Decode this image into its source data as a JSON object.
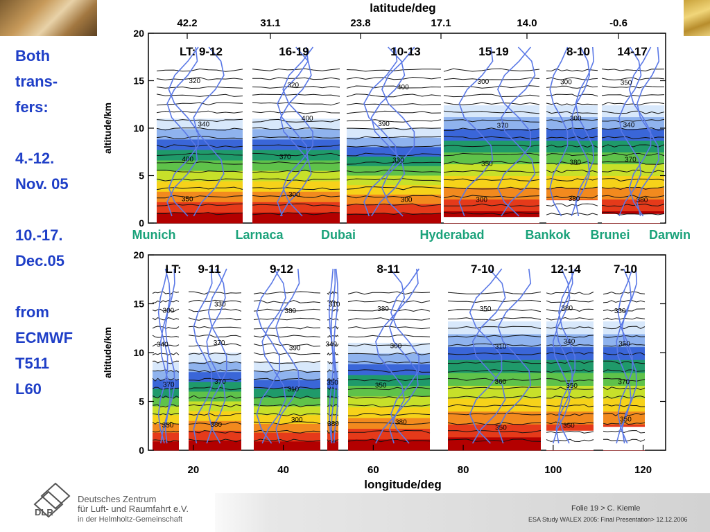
{
  "slide": {
    "left_notes": [
      "Both",
      "trans-",
      "fers:",
      "",
      "4.-12.",
      "Nov. 05",
      "",
      "10.-17.",
      "Dec.05",
      "",
      "from",
      "ECMWF",
      "T511",
      "L60"
    ],
    "colors": {
      "note_blue": "#1f3fc7",
      "city_green": "#1aa27a",
      "contour_blue": "#5a78e6"
    }
  },
  "chart_data": [
    {
      "type": "heatmap",
      "panel": "top",
      "xlabel_top": "latitude/deg",
      "x_top_ticks": [
        "42.2",
        "31.1",
        "23.8",
        "17.1",
        "14.0",
        "-0.6"
      ],
      "ylabel": "altitude/km",
      "y_ticks": [
        "0",
        "5",
        "10",
        "15",
        "20"
      ],
      "ylim": [
        0,
        20
      ],
      "local_time_labels": [
        "LT: 9-12",
        "16-19",
        "10-13",
        "15-19",
        "8-10",
        "14-17"
      ],
      "contour_labels": [
        "300",
        "310",
        "320",
        "330",
        "340",
        "350",
        "360",
        "370",
        "380",
        "390",
        "400"
      ],
      "colorbar": [
        "#b30000",
        "#e53a1a",
        "#f28a1e",
        "#f6d21a",
        "#c7e02a",
        "#5fc24a",
        "#1f9a6a",
        "#3a66d8",
        "#8fb3ee",
        "#d8e8fb"
      ]
    },
    {
      "type": "heatmap",
      "panel": "bottom",
      "xlabel": "longitude/deg",
      "x_ticks": [
        "20",
        "40",
        "60",
        "80",
        "100",
        "120"
      ],
      "xlim": [
        10,
        125
      ],
      "ylabel": "altitude/km",
      "y_ticks": [
        "0",
        "5",
        "10",
        "15",
        "20"
      ],
      "ylim": [
        0,
        20
      ],
      "local_time_labels": [
        "LT:",
        "9-11",
        "9-12",
        "8-11",
        "7-10",
        "12-14",
        "7-10"
      ],
      "contour_labels": [
        "300",
        "310",
        "320",
        "330",
        "340",
        "350",
        "360",
        "370",
        "380",
        "390"
      ]
    }
  ],
  "cities": [
    "Munich",
    "Larnaca",
    "Dubai",
    "Hyderabad",
    "Bankok",
    "Brunei",
    "Darwin"
  ],
  "footer": {
    "org_line1": "Deutsches Zentrum",
    "org_line2": "für Luft- und Raumfahrt e.V.",
    "org_line3": "in der Helmholtz-Gemeinschaft",
    "logo_text": "DLR",
    "folie": "Folie 19 > C. Kiemle",
    "presentation": "ESA Study WALEX 2005: Final Presentation> 12.12.2006"
  }
}
